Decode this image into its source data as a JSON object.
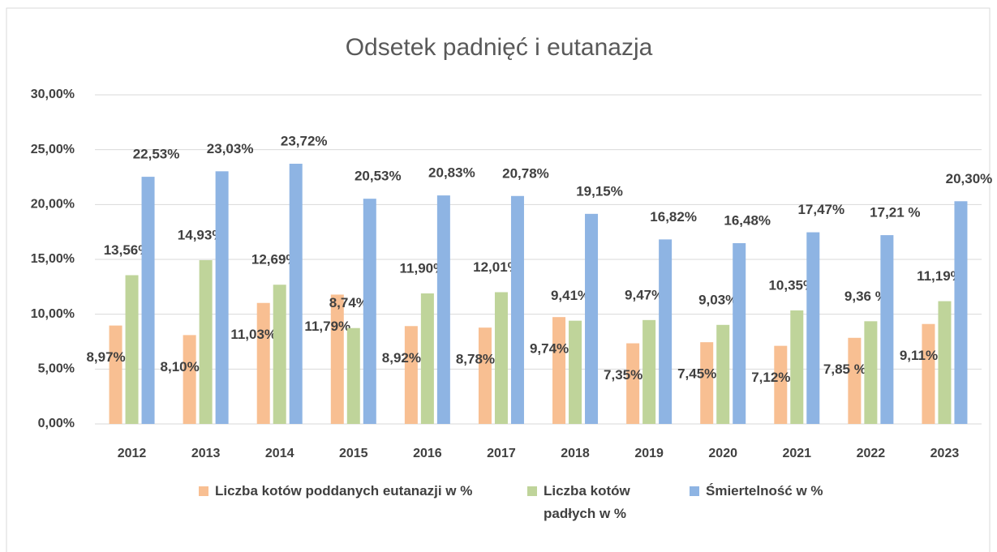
{
  "chart_data": {
    "type": "bar",
    "title": "Odsetek padnięć i eutanazja",
    "categories": [
      "2012",
      "2013",
      "2014",
      "2015",
      "2016",
      "2017",
      "2018",
      "2019",
      "2020",
      "2021",
      "2022",
      "2023"
    ],
    "series": [
      {
        "name": "Liczba kotów poddanych eutanazji w %",
        "color": "#f8bf92",
        "values": [
          8.97,
          8.1,
          11.03,
          11.79,
          8.92,
          8.78,
          9.74,
          7.35,
          7.45,
          7.12,
          7.85,
          9.11
        ],
        "value_labels": [
          "8,97%",
          "8,10%",
          "11,03%",
          "11,79%",
          "8,92%",
          "8,78%",
          "9,74%",
          "7,35%",
          "7,45%",
          "7,12%",
          "7,85 %",
          "9,11%"
        ]
      },
      {
        "name": "Liczba kotów padłych w %",
        "color": "#bfd49a",
        "values": [
          13.56,
          14.93,
          12.69,
          8.74,
          11.9,
          12.01,
          9.41,
          9.47,
          9.03,
          10.35,
          9.36,
          11.19
        ],
        "value_labels": [
          "13,56%",
          "14,93%",
          "12,69%",
          "8,74%",
          "11,90%",
          "12,01%",
          "9,41%",
          "9,47%",
          "9,03%",
          "10,35%",
          "9,36 %",
          "11,19%"
        ]
      },
      {
        "name": "Śmiertelność w %",
        "color": "#8eb4e3",
        "values": [
          22.53,
          23.03,
          23.72,
          20.53,
          20.83,
          20.78,
          19.15,
          16.82,
          16.48,
          17.47,
          17.21,
          20.3
        ],
        "value_labels": [
          "22,53%",
          "23,03%",
          "23,72%",
          "20,53%",
          "20,83%",
          "20,78%",
          "19,15%",
          "16,82%",
          "16,48%",
          "17,47%",
          "17,21 %",
          "20,30%"
        ]
      }
    ],
    "ylim": [
      0,
      30
    ],
    "yticks": [
      {
        "value": 0,
        "label": "0,00%"
      },
      {
        "value": 5,
        "label": "5,00%"
      },
      {
        "value": 10,
        "label": "10,00%"
      },
      {
        "value": 15,
        "label": "15,00%"
      },
      {
        "value": 20,
        "label": "20,00%"
      },
      {
        "value": 25,
        "label": "25,00%"
      },
      {
        "value": 30,
        "label": "30,00%"
      }
    ],
    "grid": true,
    "legend": "bottom"
  }
}
